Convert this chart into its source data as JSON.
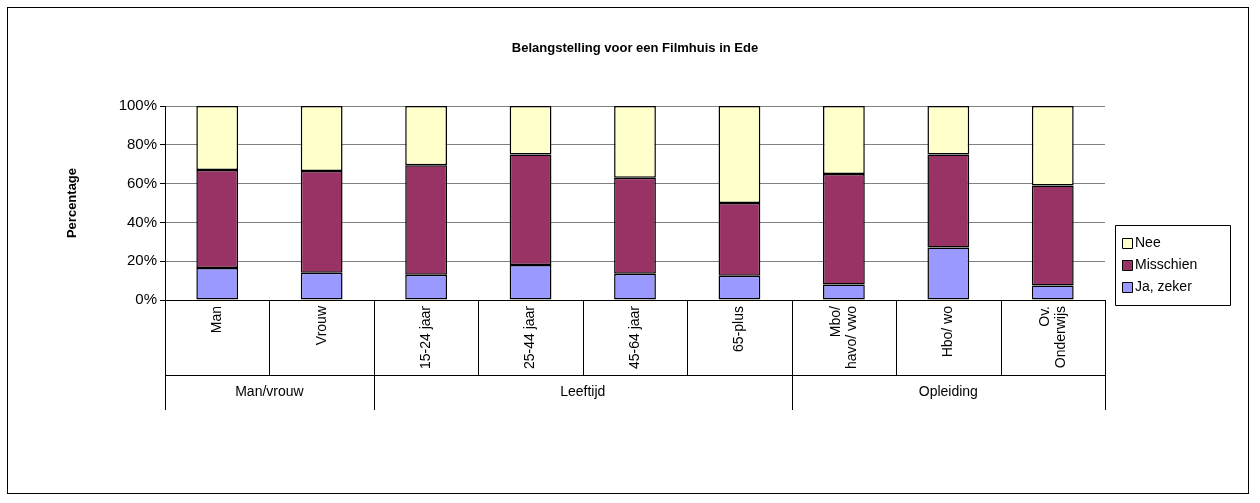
{
  "chart_data": {
    "type": "bar",
    "title": "Belangstelling voor een Filmhuis in Ede",
    "ylabel": "Percentage",
    "stacked": true,
    "legend": "right",
    "grid": "y",
    "categories": [
      "Man",
      "Vrouw",
      "15-24 jaar",
      "25-44 jaar",
      "45-64 jaar",
      "65-plus",
      "Mbo/ havo/ vwo",
      "Hbo/ wo",
      "Ov. Onderwijs"
    ],
    "series": [
      {
        "name": "Ja, zeker",
        "color": "#9999ff",
        "values": [
          16.5,
          14,
          13,
          18,
          13.5,
          12.5,
          8,
          27,
          7.5
        ]
      },
      {
        "name": "Misschien",
        "color": "#993366",
        "values": [
          50.5,
          52.5,
          56.5,
          57,
          49.5,
          37.5,
          57,
          48,
          51.5
        ]
      },
      {
        "name": "Nee",
        "color": "#ffffcc",
        "values": [
          33,
          33.5,
          30.5,
          25,
          37,
          50,
          35,
          25,
          41
        ]
      }
    ],
    "ylim": [
      0,
      100
    ],
    "yticks": [
      {
        "value": 0,
        "label": "0%"
      },
      {
        "value": 20,
        "label": "20%"
      },
      {
        "value": 40,
        "label": "40%"
      },
      {
        "value": 60,
        "label": "60%"
      },
      {
        "value": 80,
        "label": "80%"
      },
      {
        "value": 100,
        "label": "100%"
      }
    ],
    "annotations": [
      "Man/vrouw",
      "Leeftijd",
      "Opleiding"
    ]
  }
}
